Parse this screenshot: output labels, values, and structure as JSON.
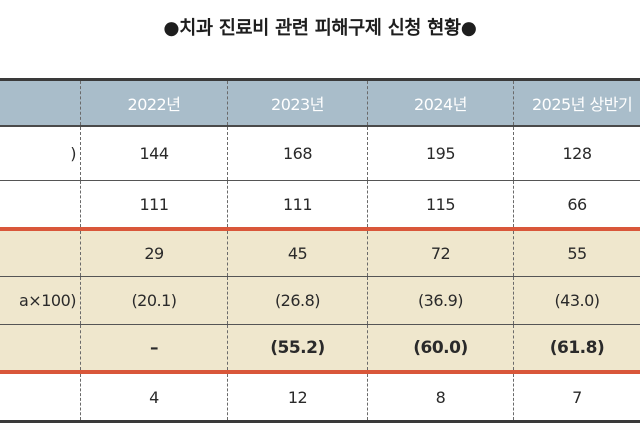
{
  "title": "●치과 진료비 관련 피해구제 신청 현황●",
  "table": {
    "header": {
      "label": "",
      "years": [
        "2022년",
        "2023년",
        "2024년",
        "2025년 상반기"
      ]
    },
    "rows": [
      {
        "label": ")",
        "values": [
          "144",
          "168",
          "195",
          "128"
        ]
      },
      {
        "label": "",
        "values": [
          "111",
          "111",
          "115",
          "66"
        ]
      },
      {
        "label": "",
        "values": [
          "29",
          "45",
          "72",
          "55"
        ]
      },
      {
        "label": "a×100)",
        "values": [
          "(20.1)",
          "(26.8)",
          "(36.9)",
          "(43.0)"
        ]
      },
      {
        "label": "",
        "values": [
          "–",
          "(55.2)",
          "(60.0)",
          "(61.8)"
        ]
      },
      {
        "label": "",
        "values": [
          "4",
          "12",
          "8",
          "7"
        ]
      }
    ]
  },
  "colors": {
    "header_bg": "#a9bdca",
    "highlight_bg": "#efe7cd",
    "accent_red": "#d9573a"
  }
}
